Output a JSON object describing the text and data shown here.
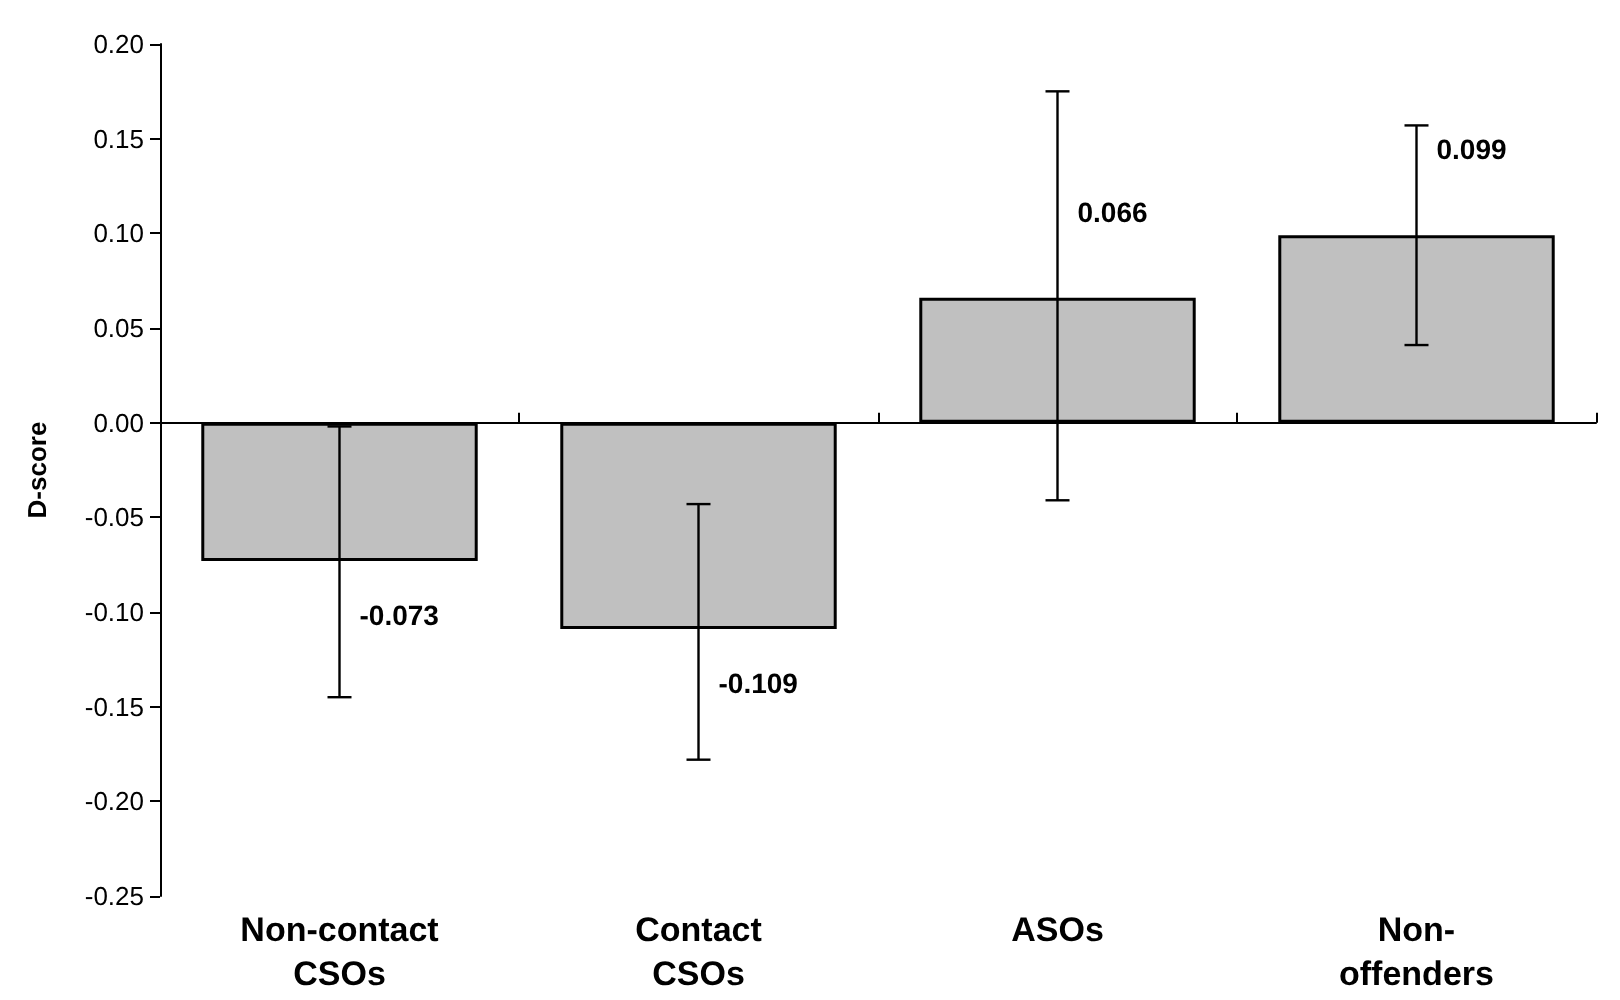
{
  "chart_data": {
    "type": "bar",
    "ylabel": "D-score",
    "categories": [
      "Non-contact CSOs",
      "Contact CSOs",
      "ASOs",
      "Non-offenders"
    ],
    "values": [
      -0.073,
      -0.109,
      0.066,
      0.099
    ],
    "color": "#c0c0c0",
    "errors": [
      [
        -0.145,
        -0.002
      ],
      [
        -0.178,
        -0.043
      ],
      [
        -0.041,
        0.175
      ],
      [
        0.041,
        0.157
      ]
    ],
    "data_labels": true,
    "ylim": [
      -0.25,
      0.2
    ],
    "yticks": [
      {
        "value": -0.25,
        "label": "-0.25"
      },
      {
        "value": -0.2,
        "label": "-0.20"
      },
      {
        "value": -0.15,
        "label": "-0.15"
      },
      {
        "value": -0.1,
        "label": "-0.10"
      },
      {
        "value": -0.05,
        "label": "-0.05"
      },
      {
        "value": 0,
        "label": "0.00"
      },
      {
        "value": 0.05,
        "label": "0.05"
      },
      {
        "value": 0.1,
        "label": "0.10"
      },
      {
        "value": 0.15,
        "label": "0.15"
      },
      {
        "value": 0.2,
        "label": "0.20"
      }
    ]
  }
}
